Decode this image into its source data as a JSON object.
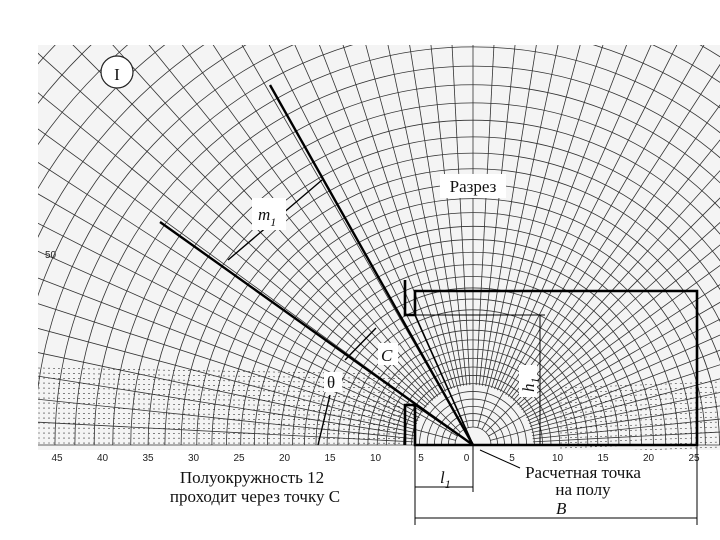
{
  "figure_label": "I",
  "section_label": "Разрез",
  "symbols": {
    "m": "m",
    "m_sub": "1",
    "c": "C",
    "theta": "θ",
    "h": "h",
    "h_sub": "1",
    "l": "l",
    "l_sub": "1",
    "b": "B"
  },
  "scale": {
    "bottom": [
      "45",
      "40",
      "35",
      "30",
      "25",
      "20",
      "15",
      "10",
      "5",
      "0",
      "5",
      "10",
      "15",
      "20",
      "25"
    ],
    "left": "50"
  },
  "captions": {
    "semicircle": [
      "Полуокружность 12",
      "проходит через точку C"
    ],
    "point": [
      "Расчетная точка",
      "на полу"
    ]
  }
}
